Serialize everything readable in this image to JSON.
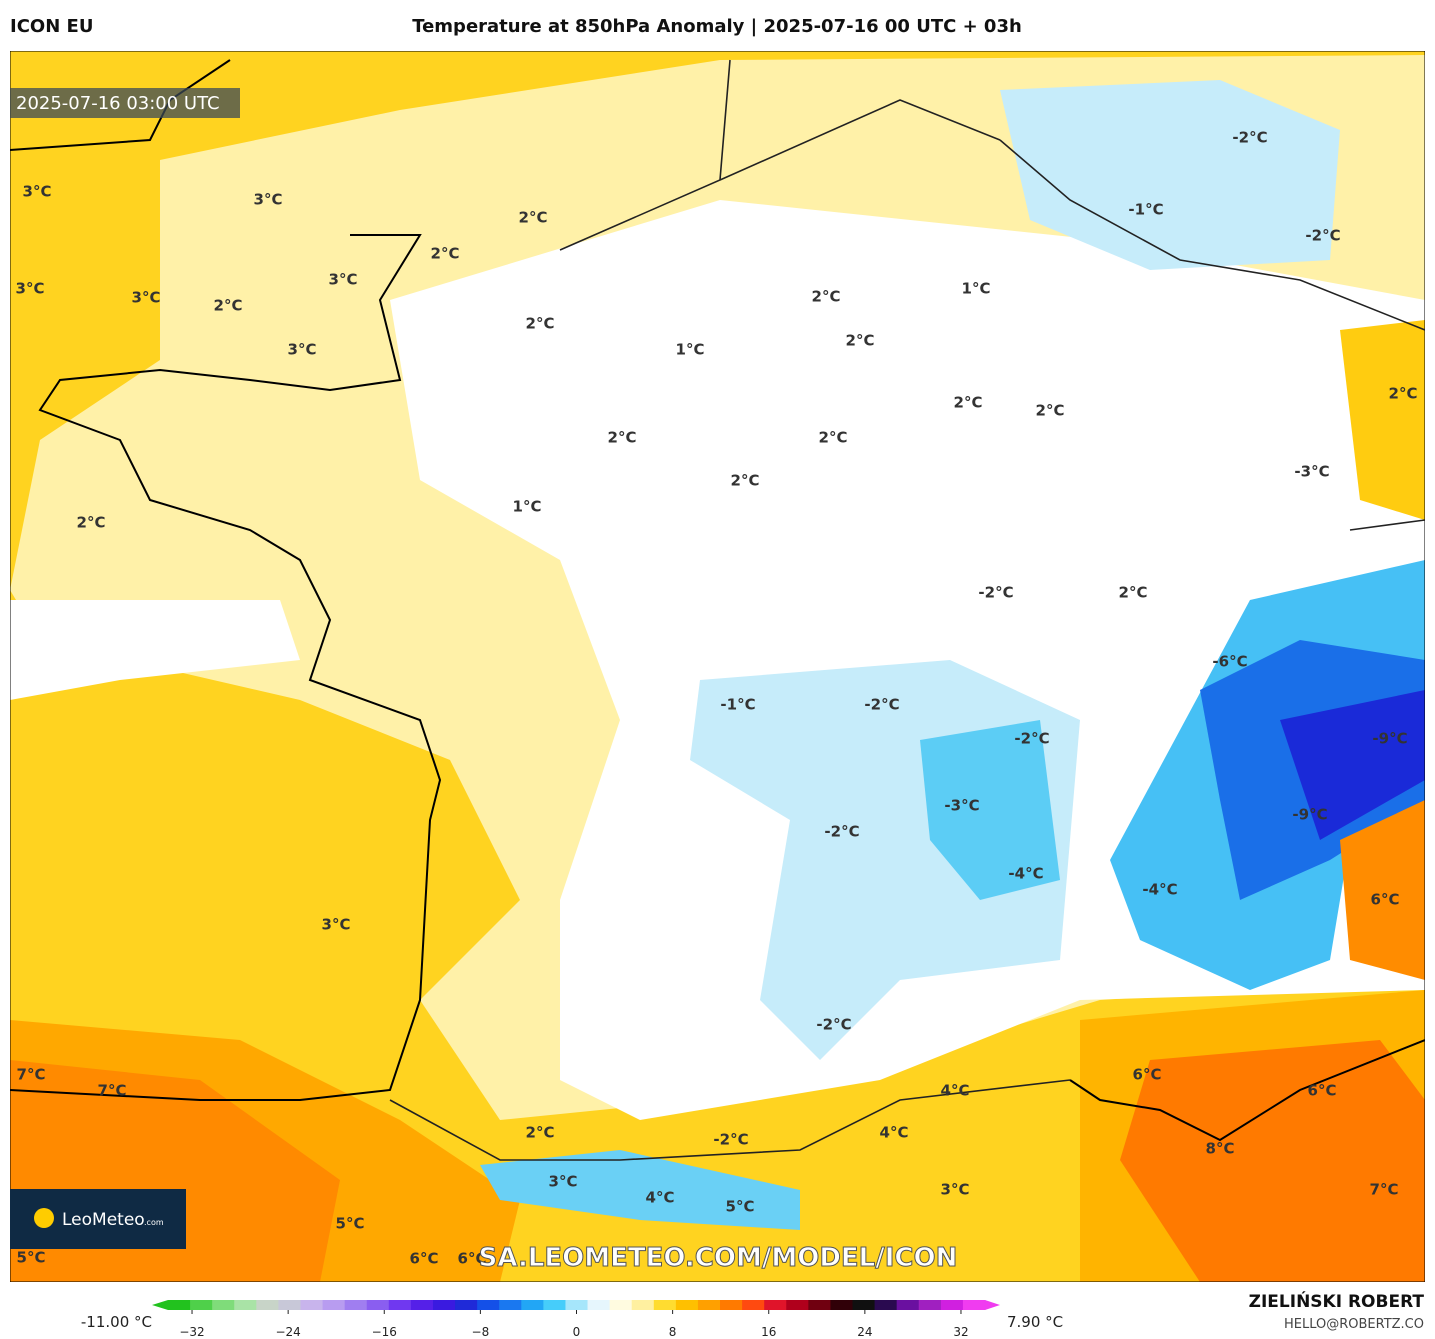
{
  "header": {
    "model": "ICON EU",
    "title": "Temperature at 850hPa Anomaly | 2025-07-16 00 UTC + 03h"
  },
  "map": {
    "valid_time": "2025-07-16 03:00 UTC",
    "watermark": "SA.LEOMETEO.COM/MODEL/ICON",
    "logo": {
      "name": "LeoMeteo",
      "suffix": ".com"
    },
    "labels": [
      "3°C",
      "3°C",
      "2°C",
      "2°C",
      "3°C",
      "3°C",
      "2°C",
      "3°C",
      "2°C",
      "3°C",
      "1°C",
      "2°C",
      "1°C",
      "2°C",
      "2°C",
      "2°C",
      "2°C",
      "2°C",
      "2°C",
      "1°C",
      "2°C",
      "-2°C",
      "-1°C",
      "-2°C",
      "2°C",
      "-3°C",
      "-2°C",
      "2°C",
      "-6°C",
      "-1°C",
      "-2°C",
      "-2°C",
      "-9°C",
      "-3°C",
      "-9°C",
      "-2°C",
      "-4°C",
      "-4°C",
      "6°C",
      "3°C",
      "-2°C",
      "7°C",
      "7°C",
      "6°C",
      "4°C",
      "6°C",
      "2°C",
      "-2°C",
      "4°C",
      "8°C",
      "3°C",
      "4°C",
      "3°C",
      "7°C",
      "5°C",
      "5°C",
      "5°C",
      "6°C",
      "6°C"
    ]
  },
  "colorbar": {
    "min_label": "-11.00 °C",
    "max_label": "7.90 °C",
    "range": [
      -34,
      34
    ],
    "colors": [
      "#22c21e",
      "#4fd04a",
      "#7fdc7a",
      "#a9e3a6",
      "#c8d4c8",
      "#c8c8d8",
      "#c8b4ec",
      "#b89cf0",
      "#a07ef0",
      "#8a5ef0",
      "#7038f0",
      "#5520e8",
      "#3a1ae0",
      "#1f2ad8",
      "#1450e8",
      "#1a78f0",
      "#22a6f5",
      "#46cdfa",
      "#a6e6fb",
      "#e6f6fd",
      "#fffbe0",
      "#fff0a0",
      "#ffdc30",
      "#ffc000",
      "#ffa000",
      "#ff7a00",
      "#ff4a10",
      "#e0142a",
      "#b0001c",
      "#700010",
      "#300008",
      "#101010",
      "#2a0a50",
      "#6a10a0",
      "#a020c0",
      "#d020e0",
      "#f03cf0"
    ],
    "ticks": [
      {
        "value": -32,
        "label": "−32"
      },
      {
        "value": -24,
        "label": "−24"
      },
      {
        "value": -16,
        "label": "−16"
      },
      {
        "value": -8,
        "label": "−8"
      },
      0,
      8,
      16,
      24,
      32
    ]
  },
  "footer": {
    "author": "ZIELIŃSKI ROBERT",
    "email": "HELLO@ROBERTZ.CO"
  }
}
